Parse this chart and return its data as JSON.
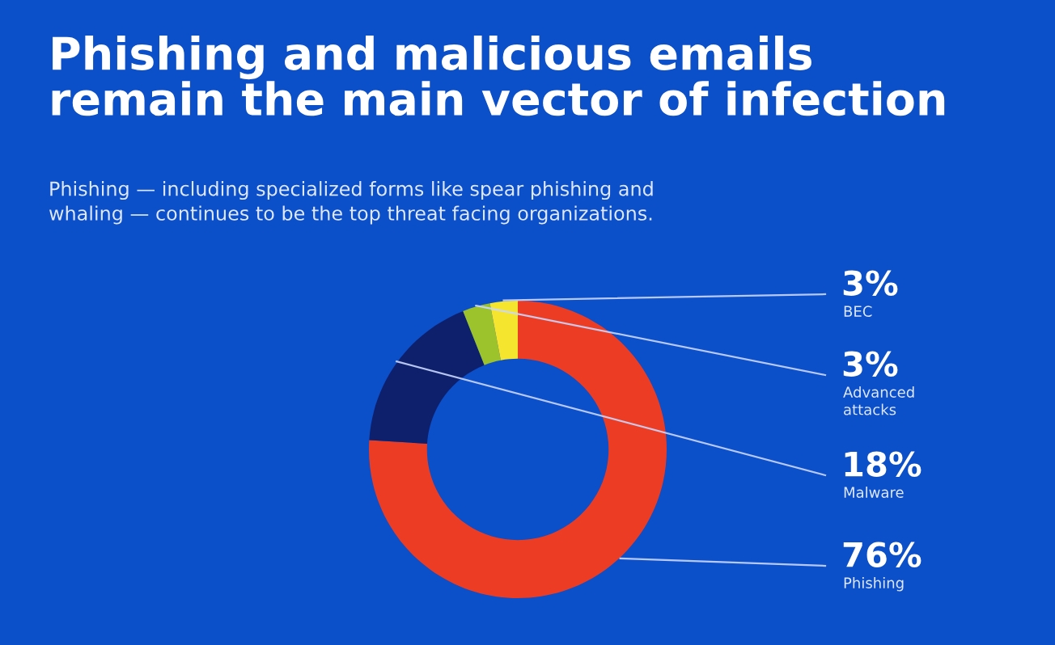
{
  "chart_data": {
    "type": "donut",
    "title": "Phishing and malicious emails\nremain the main vector of infection",
    "subtitle": "Phishing — including specialized forms like spear phishing and\nwhaling — continues to be the top threat facing organizations.",
    "categories": [
      "Phishing",
      "Malware",
      "Advanced\nattacks",
      "BEC"
    ],
    "values": [
      76,
      18,
      3,
      3
    ],
    "value_labels": [
      "76%",
      "18%",
      "3%",
      "3%"
    ],
    "colors": [
      "#ec3d24",
      "#0e206c",
      "#9cc22c",
      "#f5e52f"
    ],
    "legend": false
  }
}
